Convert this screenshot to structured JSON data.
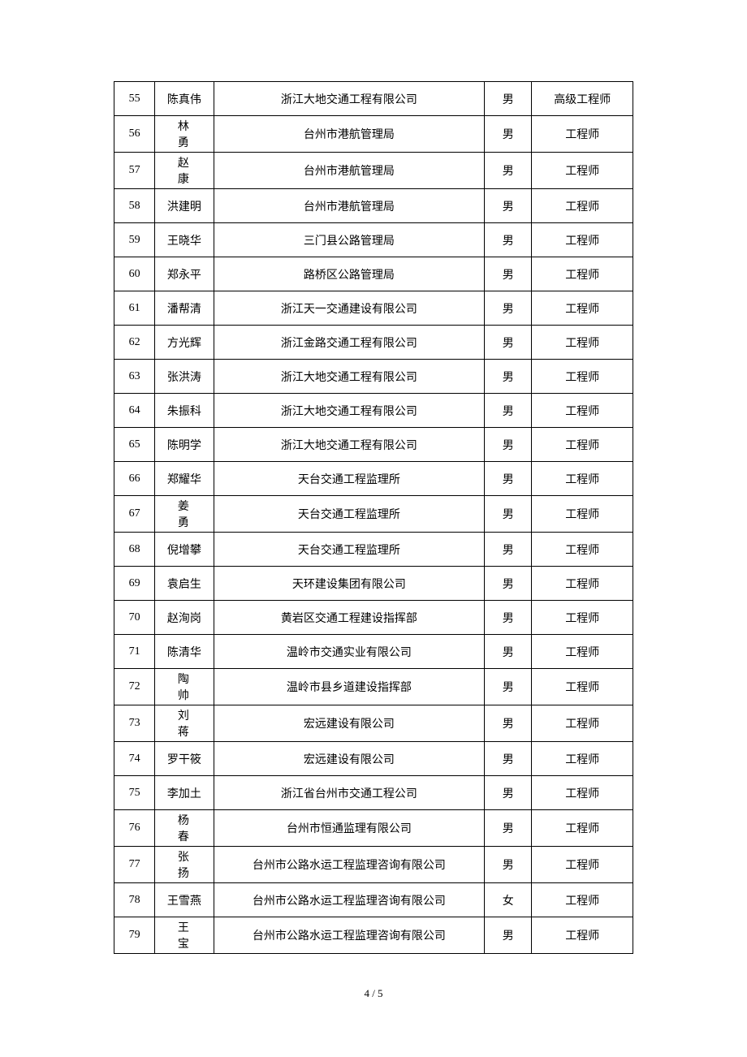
{
  "page_label": "4 / 5",
  "columns": {
    "widths": [
      50,
      72,
      332,
      58,
      124
    ],
    "alignment": "center"
  },
  "colors": {
    "border": "#000000",
    "text": "#000000",
    "background": "#ffffff"
  },
  "typography": {
    "font_family": "SimSun",
    "cell_fontsize": 14,
    "pagenum_fontsize": 13
  },
  "rows": [
    {
      "num": "55",
      "name": "陈真伟",
      "name_spaced": false,
      "org": "浙江大地交通工程有限公司",
      "gender": "男",
      "title": "高级工程师"
    },
    {
      "num": "56",
      "name": "林勇",
      "name_spaced": true,
      "org": "台州市港航管理局",
      "gender": "男",
      "title": "工程师"
    },
    {
      "num": "57",
      "name": "赵康",
      "name_spaced": true,
      "org": "台州市港航管理局",
      "gender": "男",
      "title": "工程师"
    },
    {
      "num": "58",
      "name": "洪建明",
      "name_spaced": false,
      "org": "台州市港航管理局",
      "gender": "男",
      "title": "工程师"
    },
    {
      "num": "59",
      "name": "王晓华",
      "name_spaced": false,
      "org": "三门县公路管理局",
      "gender": "男",
      "title": "工程师"
    },
    {
      "num": "60",
      "name": "郑永平",
      "name_spaced": false,
      "org": "路桥区公路管理局",
      "gender": "男",
      "title": "工程师"
    },
    {
      "num": "61",
      "name": "潘帮清",
      "name_spaced": false,
      "org": "浙江天一交通建设有限公司",
      "gender": "男",
      "title": "工程师"
    },
    {
      "num": "62",
      "name": "方光辉",
      "name_spaced": false,
      "org": "浙江金路交通工程有限公司",
      "gender": "男",
      "title": "工程师"
    },
    {
      "num": "63",
      "name": "张洪涛",
      "name_spaced": false,
      "org": "浙江大地交通工程有限公司",
      "gender": "男",
      "title": "工程师"
    },
    {
      "num": "64",
      "name": "朱振科",
      "name_spaced": false,
      "org": "浙江大地交通工程有限公司",
      "gender": "男",
      "title": "工程师"
    },
    {
      "num": "65",
      "name": "陈明学",
      "name_spaced": false,
      "org": "浙江大地交通工程有限公司",
      "gender": "男",
      "title": "工程师"
    },
    {
      "num": "66",
      "name": "郑耀华",
      "name_spaced": false,
      "org": "天台交通工程监理所",
      "gender": "男",
      "title": "工程师"
    },
    {
      "num": "67",
      "name": "姜勇",
      "name_spaced": true,
      "org": "天台交通工程监理所",
      "gender": "男",
      "title": "工程师"
    },
    {
      "num": "68",
      "name": "倪增攀",
      "name_spaced": false,
      "org": "天台交通工程监理所",
      "gender": "男",
      "title": "工程师"
    },
    {
      "num": "69",
      "name": "袁启生",
      "name_spaced": false,
      "org": "天环建设集团有限公司",
      "gender": "男",
      "title": "工程师"
    },
    {
      "num": "70",
      "name": "赵洵岗",
      "name_spaced": false,
      "org": "黄岩区交通工程建设指挥部",
      "gender": "男",
      "title": "工程师"
    },
    {
      "num": "71",
      "name": "陈清华",
      "name_spaced": false,
      "org": "温岭市交通实业有限公司",
      "gender": "男",
      "title": "工程师"
    },
    {
      "num": "72",
      "name": "陶帅",
      "name_spaced": true,
      "org": "温岭市县乡道建设指挥部",
      "gender": "男",
      "title": "工程师"
    },
    {
      "num": "73",
      "name": "刘蒋",
      "name_spaced": true,
      "org": "宏远建设有限公司",
      "gender": "男",
      "title": "工程师"
    },
    {
      "num": "74",
      "name": "罗干筱",
      "name_spaced": false,
      "org": "宏远建设有限公司",
      "gender": "男",
      "title": "工程师"
    },
    {
      "num": "75",
      "name": "李加土",
      "name_spaced": false,
      "org": "浙江省台州市交通工程公司",
      "gender": "男",
      "title": "工程师"
    },
    {
      "num": "76",
      "name": "杨春",
      "name_spaced": true,
      "org": "台州市恒通监理有限公司",
      "gender": "男",
      "title": "工程师"
    },
    {
      "num": "77",
      "name": "张扬",
      "name_spaced": true,
      "org": "台州市公路水运工程监理咨询有限公司",
      "gender": "男",
      "title": "工程师"
    },
    {
      "num": "78",
      "name": "王雪燕",
      "name_spaced": false,
      "org": "台州市公路水运工程监理咨询有限公司",
      "gender": "女",
      "title": "工程师"
    },
    {
      "num": "79",
      "name": "王宝",
      "name_spaced": true,
      "org": "台州市公路水运工程监理咨询有限公司",
      "gender": "男",
      "title": "工程师"
    }
  ]
}
